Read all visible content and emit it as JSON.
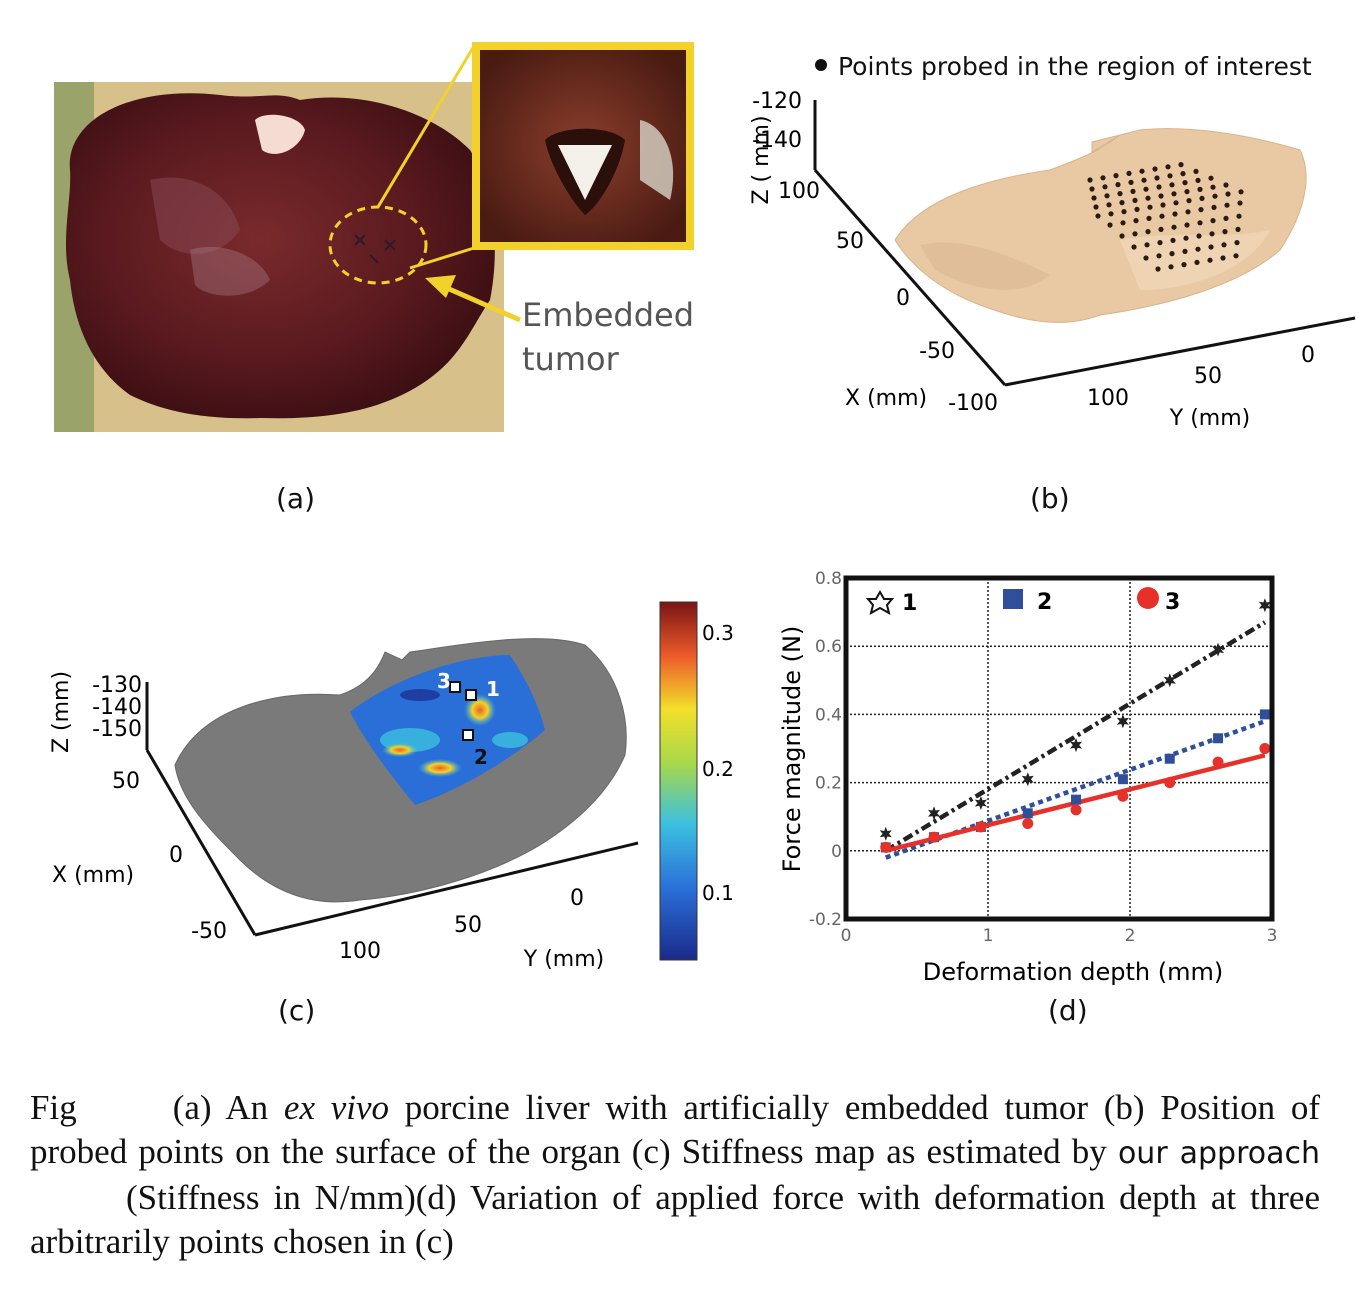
{
  "panel_a": {
    "label": "(a)",
    "annotation_line1": "Embedded",
    "annotation_line2": "tumor"
  },
  "panel_b": {
    "label": "(b)",
    "legend": "Points probed in the region of interest",
    "z_axis_label": "Z ( mm)",
    "z_ticks": [
      "-120",
      "-140"
    ],
    "x_axis_label": "X (mm)",
    "x_ticks": [
      "100",
      "50",
      "0",
      "-50",
      "-100"
    ],
    "y_axis_label": "Y (mm)",
    "y_ticks": [
      "100",
      "50",
      "0"
    ]
  },
  "panel_c": {
    "label": "(c)",
    "z_axis_label": "Z (mm)",
    "z_ticks": [
      "-130",
      "-140",
      "-150"
    ],
    "x_axis_label": "X (mm)",
    "x_ticks": [
      "50",
      "0",
      "-50"
    ],
    "y_axis_label": "Y (mm)",
    "y_ticks": [
      "100",
      "50",
      "0"
    ],
    "colorbar_ticks": [
      "0.3",
      "0.2",
      "0.1"
    ],
    "marker_labels": [
      "1",
      "2",
      "3"
    ]
  },
  "chart_data": {
    "type": "scatter",
    "title": "",
    "xlabel": "Deformation depth (mm)",
    "ylabel": "Force magnitude (N)",
    "xlim": [
      0,
      3
    ],
    "ylim": [
      -0.2,
      0.8
    ],
    "x_ticks": [
      "0",
      "1",
      "2",
      "3"
    ],
    "y_ticks": [
      "-0.2",
      "0",
      "0.2",
      "0.4",
      "0.6",
      "0.8"
    ],
    "grid": true,
    "legend_position": "top",
    "series": [
      {
        "name": "1",
        "marker": "star",
        "color": "#222222",
        "x": [
          0.28,
          0.62,
          0.95,
          1.28,
          1.62,
          1.95,
          2.28,
          2.62,
          2.95
        ],
        "y": [
          0.05,
          0.11,
          0.14,
          0.21,
          0.31,
          0.38,
          0.5,
          0.59,
          0.72
        ],
        "fit": {
          "x": [
            0.28,
            2.95
          ],
          "y": [
            0.0,
            0.67
          ],
          "style": "dash-dot"
        }
      },
      {
        "name": "2",
        "marker": "square",
        "color": "#2f4f9b",
        "x": [
          0.28,
          0.62,
          0.95,
          1.28,
          1.62,
          1.95,
          2.28,
          2.62,
          2.95
        ],
        "y": [
          0.01,
          0.04,
          0.07,
          0.11,
          0.15,
          0.21,
          0.27,
          0.33,
          0.4
        ],
        "fit": {
          "x": [
            0.28,
            2.95
          ],
          "y": [
            -0.02,
            0.38
          ],
          "style": "dotted"
        }
      },
      {
        "name": "3",
        "marker": "circle",
        "color": "#e8302a",
        "x": [
          0.28,
          0.62,
          0.95,
          1.28,
          1.62,
          1.95,
          2.28,
          2.62,
          2.95
        ],
        "y": [
          0.01,
          0.04,
          0.07,
          0.08,
          0.12,
          0.16,
          0.2,
          0.26,
          0.3
        ],
        "fit": {
          "x": [
            0.28,
            2.95
          ],
          "y": [
            0.0,
            0.28
          ],
          "style": "solid"
        }
      }
    ]
  },
  "panel_d": {
    "label": "(d)"
  },
  "caption": {
    "fig": "Fig",
    "part1": "(a) An",
    "ex_vivo": "ex vivo",
    "part2": "porcine liver with artificially embedded tumor (b) Position of probed points on the surface of the organ (c) Stiffness map as estimated by",
    "approach": "our approach",
    "part3": "(Stiffness in N/mm)(d) Variation of applied force with deformation depth at three arbitrarily points chosen in (c)"
  }
}
